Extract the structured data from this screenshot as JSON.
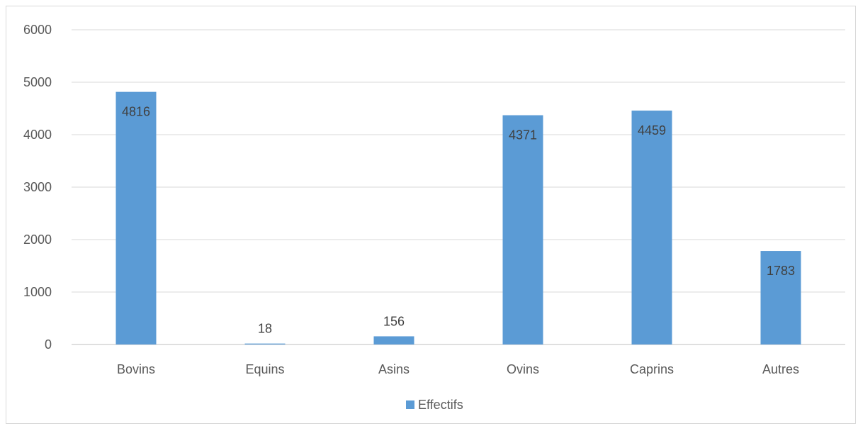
{
  "chart_data": {
    "type": "bar",
    "title": "",
    "xlabel": "",
    "ylabel": "",
    "categories": [
      "Bovins",
      "Equins",
      "Asins",
      "Ovins",
      "Caprins",
      "Autres"
    ],
    "series": [
      {
        "name": "Effectifs",
        "values": [
          4816,
          18,
          156,
          4371,
          4459,
          1783
        ],
        "color": "#5b9bd5"
      }
    ],
    "data_labels": [
      "4816",
      "18",
      "156",
      "4371",
      "4459",
      "1783"
    ],
    "ylim": [
      0,
      6000
    ],
    "yticks": [
      0,
      1000,
      2000,
      3000,
      4000,
      5000,
      6000
    ],
    "ytick_labels": [
      "0",
      "1000",
      "2000",
      "3000",
      "4000",
      "5000",
      "6000"
    ],
    "grid": true,
    "legend_position": "bottom",
    "colors": {
      "bar": "#5b9bd5",
      "grid": "#d9d9d9",
      "axis": "#bfbfbf",
      "text": "#595959"
    }
  }
}
